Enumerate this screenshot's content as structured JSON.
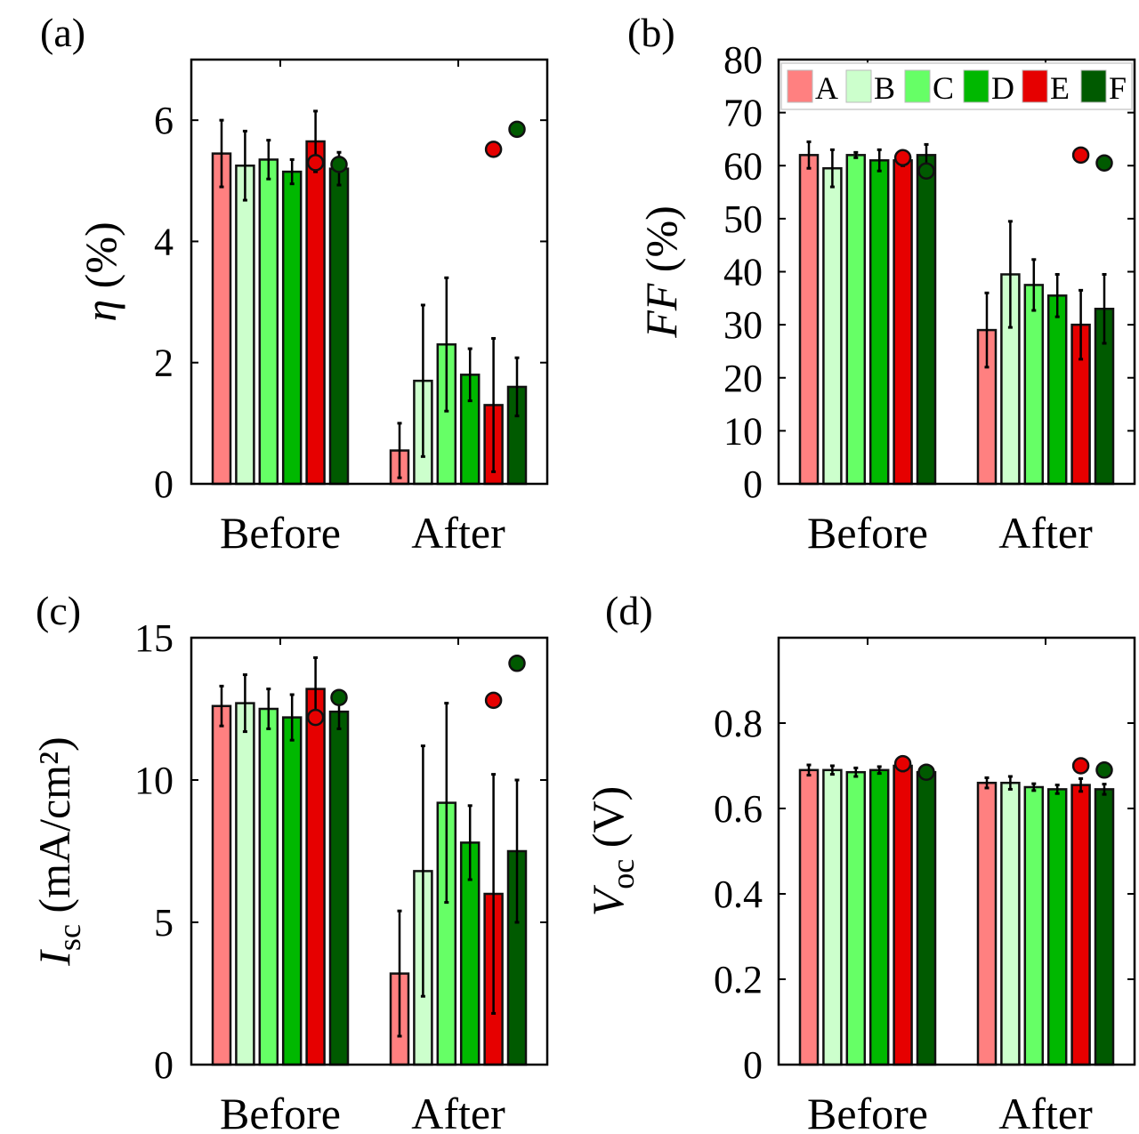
{
  "chart_data": [
    {
      "type": "bar",
      "panel": "(a)",
      "ylabel": {
        "symbol": "η",
        "sub": "",
        "unit": " (%)"
      },
      "ylim": [
        0,
        7
      ],
      "yticks": [
        0,
        2,
        4,
        6
      ],
      "yticklabels": [
        "0",
        "2",
        "4",
        "6"
      ],
      "categories": [
        "Before",
        "After"
      ],
      "series": [
        {
          "name": "A",
          "values": [
            5.45,
            0.55
          ],
          "errors": [
            0.55,
            0.45
          ]
        },
        {
          "name": "B",
          "values": [
            5.25,
            1.7
          ],
          "errors": [
            0.57,
            1.25
          ]
        },
        {
          "name": "C",
          "values": [
            5.35,
            2.3
          ],
          "errors": [
            0.32,
            1.1
          ]
        },
        {
          "name": "D",
          "values": [
            5.15,
            1.8
          ],
          "errors": [
            0.2,
            0.43
          ]
        },
        {
          "name": "E",
          "values": [
            5.65,
            1.3
          ],
          "errors": [
            0.5,
            1.1
          ]
        },
        {
          "name": "F",
          "values": [
            5.2,
            1.6
          ],
          "errors": [
            0.27,
            0.48
          ]
        }
      ],
      "markers": [
        {
          "series": "E",
          "values": [
            5.3,
            5.52
          ]
        },
        {
          "series": "F",
          "values": [
            5.27,
            5.85
          ]
        }
      ]
    },
    {
      "type": "bar",
      "panel": "(b)",
      "ylabel": {
        "symbol": "FF",
        "sub": "",
        "unit": " (%)"
      },
      "ylim": [
        0,
        80
      ],
      "yticks": [
        0,
        10,
        20,
        30,
        40,
        50,
        60,
        70,
        80
      ],
      "yticklabels": [
        "0",
        "10",
        "20",
        "30",
        "40",
        "50",
        "60",
        "70",
        "80"
      ],
      "categories": [
        "Before",
        "After"
      ],
      "legend": "top",
      "series": [
        {
          "name": "A",
          "values": [
            62,
            29
          ],
          "errors": [
            2.5,
            7
          ]
        },
        {
          "name": "B",
          "values": [
            59.5,
            39.5
          ],
          "errors": [
            3.5,
            10
          ]
        },
        {
          "name": "C",
          "values": [
            62,
            37.5
          ],
          "errors": [
            0.5,
            4.8
          ]
        },
        {
          "name": "D",
          "values": [
            61,
            35.5
          ],
          "errors": [
            2,
            4
          ]
        },
        {
          "name": "E",
          "values": [
            61,
            30
          ],
          "errors": [
            1,
            6.5
          ]
        },
        {
          "name": "F",
          "values": [
            62,
            33
          ],
          "errors": [
            2,
            6.5
          ]
        }
      ],
      "markers": [
        {
          "series": "E",
          "values": [
            61.5,
            62
          ]
        },
        {
          "series": "F",
          "values": [
            59,
            60.5
          ]
        }
      ]
    },
    {
      "type": "bar",
      "panel": "(c)",
      "ylabel": {
        "symbol": "I",
        "sub": "sc",
        "unit": " (mA/cm²)"
      },
      "ylim": [
        0,
        15
      ],
      "yticks": [
        0,
        5,
        10,
        15
      ],
      "yticklabels": [
        "0",
        "5",
        "10",
        "15"
      ],
      "categories": [
        "Before",
        "After"
      ],
      "series": [
        {
          "name": "A",
          "values": [
            12.6,
            3.2
          ],
          "errors": [
            0.7,
            2.2
          ]
        },
        {
          "name": "B",
          "values": [
            12.7,
            6.8
          ],
          "errors": [
            1.0,
            4.4
          ]
        },
        {
          "name": "C",
          "values": [
            12.5,
            9.2
          ],
          "errors": [
            0.7,
            3.5
          ]
        },
        {
          "name": "D",
          "values": [
            12.2,
            7.8
          ],
          "errors": [
            0.8,
            1.3
          ]
        },
        {
          "name": "E",
          "values": [
            13.2,
            6.0
          ],
          "errors": [
            1.1,
            4.2
          ]
        },
        {
          "name": "F",
          "values": [
            12.4,
            7.5
          ],
          "errors": [
            0.6,
            2.5
          ]
        }
      ],
      "markers": [
        {
          "series": "E",
          "values": [
            12.2,
            12.8
          ]
        },
        {
          "series": "F",
          "values": [
            12.9,
            14.1
          ]
        }
      ]
    },
    {
      "type": "bar",
      "panel": "(d)",
      "ylabel": {
        "symbol": "V",
        "sub": "oc",
        "unit": " (V)"
      },
      "ylim": [
        0,
        1
      ],
      "yticks": [
        0,
        0.2,
        0.4,
        0.6,
        0.8
      ],
      "yticklabels": [
        "0",
        "0.2",
        "0.4",
        "0.6",
        "0.8"
      ],
      "categories": [
        "Before",
        "After"
      ],
      "series": [
        {
          "name": "A",
          "values": [
            0.69,
            0.66
          ],
          "errors": [
            0.012,
            0.012
          ]
        },
        {
          "name": "B",
          "values": [
            0.69,
            0.66
          ],
          "errors": [
            0.01,
            0.015
          ]
        },
        {
          "name": "C",
          "values": [
            0.685,
            0.65
          ],
          "errors": [
            0.01,
            0.008
          ]
        },
        {
          "name": "D",
          "values": [
            0.69,
            0.645
          ],
          "errors": [
            0.008,
            0.01
          ]
        },
        {
          "name": "E",
          "values": [
            0.7,
            0.655
          ],
          "errors": [
            0.012,
            0.015
          ]
        },
        {
          "name": "F",
          "values": [
            0.685,
            0.645
          ],
          "errors": [
            0.008,
            0.012
          ]
        }
      ],
      "markers": [
        {
          "series": "E",
          "values": [
            0.705,
            0.7
          ]
        },
        {
          "series": "F",
          "values": [
            0.685,
            0.69
          ]
        }
      ]
    }
  ],
  "colors": {
    "A": "#ff8080",
    "B": "#ccffcc",
    "C": "#66ff66",
    "D": "#00b800",
    "E": "#e60000",
    "F": "#005a00"
  }
}
